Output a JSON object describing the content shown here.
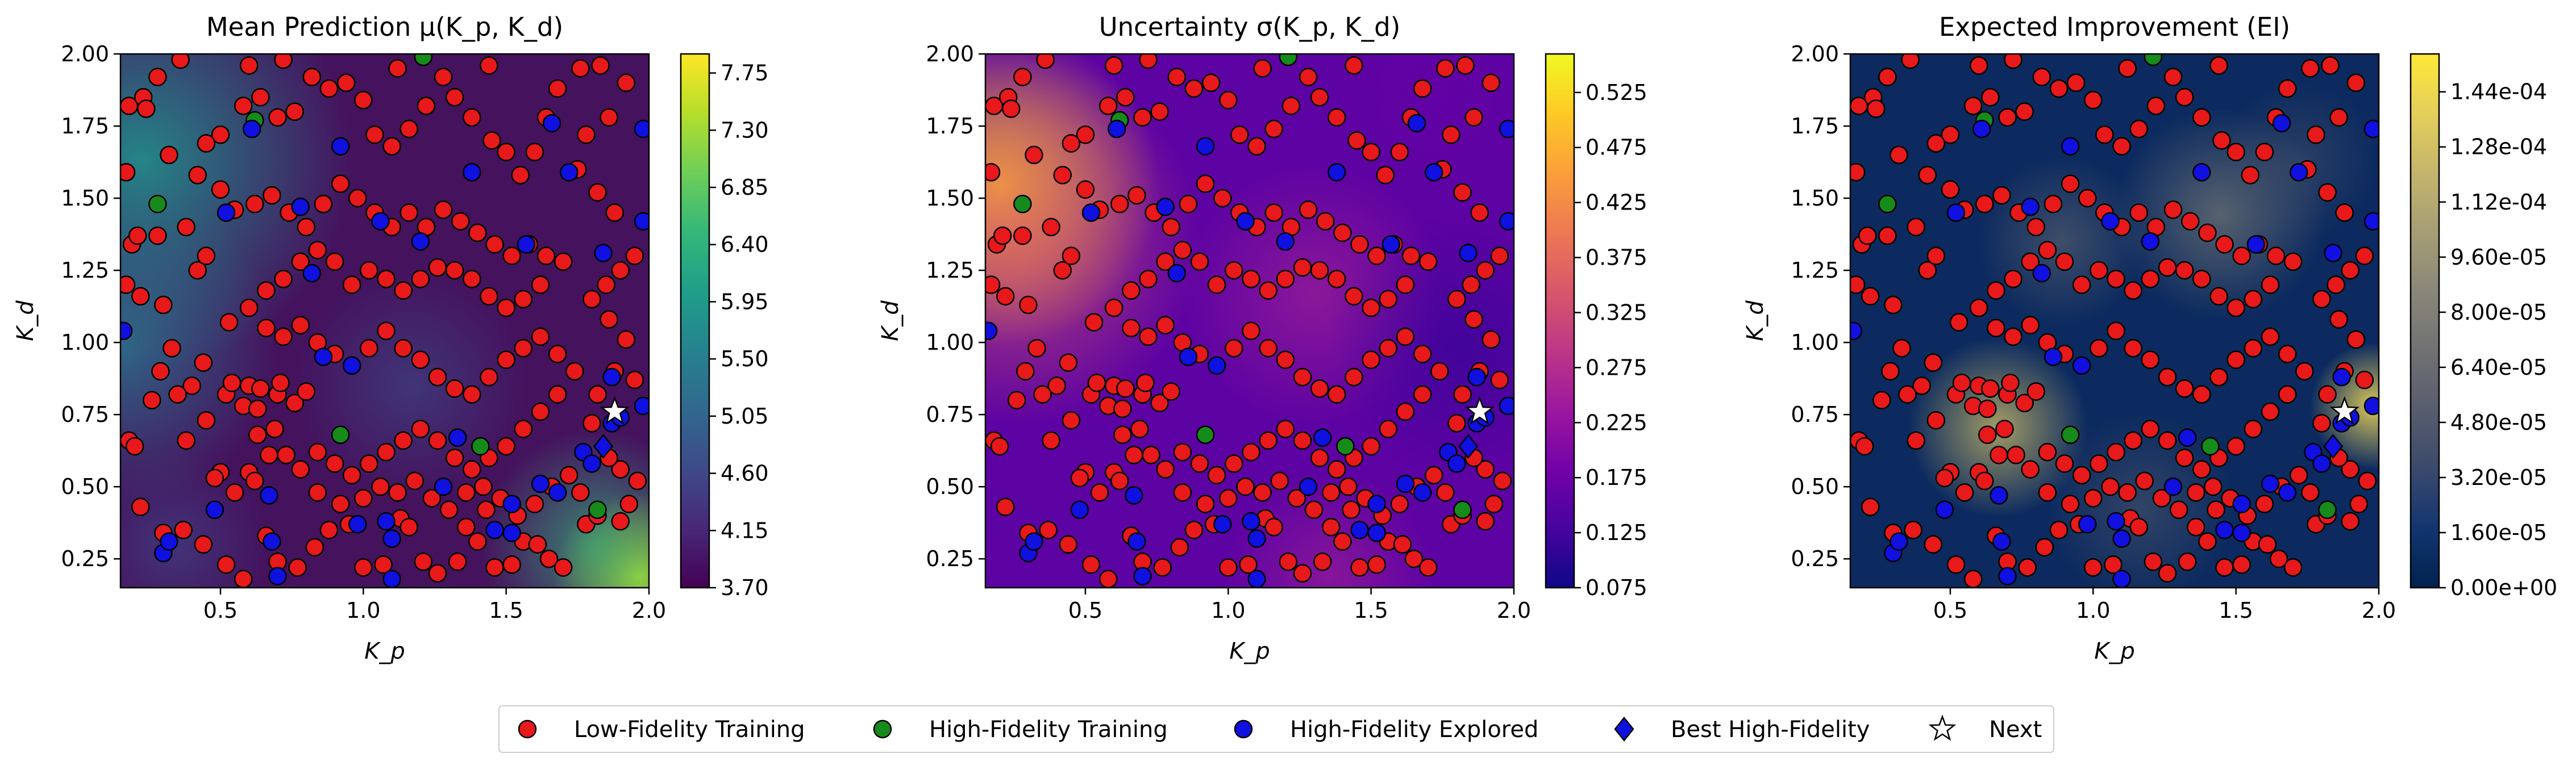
{
  "figure": {
    "legend": [
      {
        "label": "Low-Fidelity Training",
        "marker": "circle",
        "color": "#e8191b"
      },
      {
        "label": "High-Fidelity Training",
        "marker": "circle",
        "color": "#178a1c"
      },
      {
        "label": "High-Fidelity Explored",
        "marker": "circle",
        "color": "#1010e0"
      },
      {
        "label": "Best High-Fidelity",
        "marker": "diamond",
        "color": "#1010e0"
      },
      {
        "label": "Next",
        "marker": "star",
        "color": "#ffffff"
      }
    ]
  },
  "chart_data": [
    {
      "type": "heatmap",
      "title": "Mean Prediction μ(K_p, K_d)",
      "xlabel": "K_p",
      "ylabel": "K_d",
      "xlim": [
        0.15,
        2.0
      ],
      "ylim": [
        0.15,
        2.0
      ],
      "x_ticks": [
        "0.5",
        "1.0",
        "1.5",
        "2.0"
      ],
      "y_ticks": [
        "0.25",
        "0.50",
        "0.75",
        "1.00",
        "1.25",
        "1.50",
        "1.75",
        "2.00"
      ],
      "colormap": "viridis",
      "colorbar_range": [
        3.7,
        7.9
      ],
      "colorbar_ticks": [
        "3.70",
        "4.15",
        "4.60",
        "5.05",
        "5.50",
        "5.95",
        "6.40",
        "6.85",
        "7.30",
        "7.75"
      ],
      "grid": false
    },
    {
      "type": "heatmap",
      "title": "Uncertainty σ(K_p, K_d)",
      "xlabel": "K_p",
      "ylabel": "K_d",
      "xlim": [
        0.15,
        2.0
      ],
      "ylim": [
        0.15,
        2.0
      ],
      "x_ticks": [
        "0.5",
        "1.0",
        "1.5",
        "2.0"
      ],
      "y_ticks": [
        "0.25",
        "0.50",
        "0.75",
        "1.00",
        "1.25",
        "1.50",
        "1.75",
        "2.00"
      ],
      "colormap": "plasma",
      "colorbar_range": [
        0.075,
        0.56
      ],
      "colorbar_ticks": [
        "0.075",
        "0.125",
        "0.175",
        "0.225",
        "0.275",
        "0.325",
        "0.375",
        "0.425",
        "0.475",
        "0.525"
      ],
      "grid": false
    },
    {
      "type": "heatmap",
      "title": "Expected Improvement (EI)",
      "xlabel": "K_p",
      "ylabel": "K_d",
      "xlim": [
        0.15,
        2.0
      ],
      "ylim": [
        0.15,
        2.0
      ],
      "x_ticks": [
        "0.5",
        "1.0",
        "1.5",
        "2.0"
      ],
      "y_ticks": [
        "0.25",
        "0.50",
        "0.75",
        "1.00",
        "1.25",
        "1.50",
        "1.75",
        "2.00"
      ],
      "colormap": "cividis",
      "colorbar_range": [
        0.0,
        0.000155
      ],
      "colorbar_ticks": [
        "0.00e+00",
        "1.60e-05",
        "3.20e-05",
        "4.80e-05",
        "6.40e-05",
        "8.00e-05",
        "9.60e-05",
        "1.12e-04",
        "1.28e-04",
        "1.44e-04"
      ],
      "grid": false
    }
  ],
  "points": {
    "low_fidelity": [
      [
        0.18,
        1.82
      ],
      [
        0.17,
        1.59
      ],
      [
        0.23,
        1.85
      ],
      [
        0.24,
        1.81
      ],
      [
        0.19,
        1.34
      ],
      [
        0.21,
        1.37
      ],
      [
        0.28,
        1.37
      ],
      [
        0.17,
        1.2
      ],
      [
        0.22,
        1.16
      ],
      [
        0.3,
        1.13
      ],
      [
        0.38,
        1.4
      ],
      [
        0.42,
        1.25
      ],
      [
        0.45,
        1.3
      ],
      [
        0.53,
        1.07
      ],
      [
        0.44,
        0.93
      ],
      [
        0.4,
        0.85
      ],
      [
        0.33,
        0.98
      ],
      [
        0.29,
        0.9
      ],
      [
        0.35,
        0.82
      ],
      [
        0.38,
        0.66
      ],
      [
        0.45,
        0.73
      ],
      [
        0.52,
        0.82
      ],
      [
        0.54,
        0.86
      ],
      [
        0.58,
        0.78
      ],
      [
        0.63,
        0.77
      ],
      [
        0.6,
        0.85
      ],
      [
        0.64,
        0.84
      ],
      [
        0.7,
        0.82
      ],
      [
        0.71,
        0.86
      ],
      [
        0.76,
        0.79
      ],
      [
        0.8,
        0.83
      ],
      [
        0.69,
        0.7
      ],
      [
        0.63,
        0.68
      ],
      [
        0.67,
        0.61
      ],
      [
        0.73,
        0.61
      ],
      [
        0.6,
        0.55
      ],
      [
        0.5,
        0.55
      ],
      [
        0.48,
        0.53
      ],
      [
        0.55,
        0.48
      ],
      [
        0.62,
        0.52
      ],
      [
        0.18,
        0.66
      ],
      [
        0.2,
        0.64
      ],
      [
        0.22,
        0.43
      ],
      [
        0.3,
        0.34
      ],
      [
        0.37,
        0.35
      ],
      [
        0.44,
        0.3
      ],
      [
        0.52,
        0.23
      ],
      [
        0.58,
        0.18
      ],
      [
        0.66,
        0.33
      ],
      [
        0.7,
        0.24
      ],
      [
        0.77,
        0.22
      ],
      [
        0.83,
        0.29
      ],
      [
        0.88,
        0.35
      ],
      [
        0.95,
        0.37
      ],
      [
        1.0,
        0.22
      ],
      [
        1.07,
        0.23
      ],
      [
        1.13,
        0.39
      ],
      [
        1.16,
        0.36
      ],
      [
        1.21,
        0.24
      ],
      [
        1.26,
        0.2
      ],
      [
        1.33,
        0.24
      ],
      [
        1.36,
        0.36
      ],
      [
        1.4,
        0.31
      ],
      [
        1.43,
        0.42
      ],
      [
        1.46,
        0.22
      ],
      [
        1.52,
        0.23
      ],
      [
        1.56,
        0.31
      ],
      [
        1.61,
        0.3
      ],
      [
        1.65,
        0.25
      ],
      [
        1.7,
        0.22
      ],
      [
        1.78,
        0.37
      ],
      [
        1.82,
        0.4
      ],
      [
        1.9,
        0.38
      ],
      [
        1.93,
        0.44
      ],
      [
        1.96,
        0.52
      ],
      [
        1.9,
        0.56
      ],
      [
        1.86,
        0.6
      ],
      [
        1.8,
        0.72
      ],
      [
        1.82,
        0.82
      ],
      [
        1.88,
        0.9
      ],
      [
        1.95,
        0.87
      ],
      [
        1.92,
        1.01
      ],
      [
        1.86,
        1.08
      ],
      [
        1.8,
        1.15
      ],
      [
        1.85,
        1.2
      ],
      [
        1.9,
        1.25
      ],
      [
        1.95,
        1.3
      ],
      [
        1.88,
        1.45
      ],
      [
        1.82,
        1.52
      ],
      [
        1.75,
        1.6
      ],
      [
        1.78,
        1.72
      ],
      [
        1.86,
        1.78
      ],
      [
        1.92,
        1.9
      ],
      [
        1.83,
        1.96
      ],
      [
        1.76,
        1.95
      ],
      [
        1.68,
        1.88
      ],
      [
        1.64,
        1.78
      ],
      [
        1.6,
        1.66
      ],
      [
        1.55,
        1.58
      ],
      [
        1.5,
        1.66
      ],
      [
        1.45,
        1.7
      ],
      [
        1.38,
        1.78
      ],
      [
        1.32,
        1.85
      ],
      [
        1.28,
        1.92
      ],
      [
        1.22,
        1.82
      ],
      [
        1.16,
        1.74
      ],
      [
        1.1,
        1.68
      ],
      [
        1.04,
        1.72
      ],
      [
        1.0,
        1.84
      ],
      [
        0.94,
        1.9
      ],
      [
        0.88,
        1.88
      ],
      [
        0.82,
        1.92
      ],
      [
        0.76,
        1.8
      ],
      [
        0.7,
        1.78
      ],
      [
        0.64,
        1.85
      ],
      [
        0.58,
        1.82
      ],
      [
        0.5,
        1.72
      ],
      [
        0.45,
        1.69
      ],
      [
        0.42,
        1.58
      ],
      [
        0.5,
        1.53
      ],
      [
        0.55,
        1.46
      ],
      [
        0.62,
        1.48
      ],
      [
        0.68,
        1.51
      ],
      [
        0.74,
        1.45
      ],
      [
        0.8,
        1.4
      ],
      [
        0.86,
        1.48
      ],
      [
        0.92,
        1.55
      ],
      [
        0.98,
        1.5
      ],
      [
        1.04,
        1.45
      ],
      [
        1.1,
        1.4
      ],
      [
        1.16,
        1.45
      ],
      [
        1.22,
        1.4
      ],
      [
        1.28,
        1.46
      ],
      [
        1.34,
        1.42
      ],
      [
        1.4,
        1.38
      ],
      [
        1.46,
        1.34
      ],
      [
        1.52,
        1.3
      ],
      [
        1.58,
        1.34
      ],
      [
        1.64,
        1.3
      ],
      [
        1.7,
        1.28
      ],
      [
        1.62,
        1.2
      ],
      [
        1.56,
        1.15
      ],
      [
        1.5,
        1.12
      ],
      [
        1.44,
        1.16
      ],
      [
        1.38,
        1.22
      ],
      [
        1.32,
        1.25
      ],
      [
        1.26,
        1.26
      ],
      [
        1.2,
        1.22
      ],
      [
        1.14,
        1.18
      ],
      [
        1.08,
        1.22
      ],
      [
        1.02,
        1.25
      ],
      [
        0.96,
        1.2
      ],
      [
        0.9,
        1.28
      ],
      [
        0.84,
        1.32
      ],
      [
        0.78,
        1.28
      ],
      [
        0.72,
        1.22
      ],
      [
        0.66,
        1.18
      ],
      [
        0.6,
        1.12
      ],
      [
        0.66,
        1.05
      ],
      [
        0.72,
        1.02
      ],
      [
        0.78,
        1.06
      ],
      [
        0.84,
        1.0
      ],
      [
        0.9,
        0.96
      ],
      [
        0.96,
        0.92
      ],
      [
        1.02,
        0.98
      ],
      [
        1.08,
        1.04
      ],
      [
        1.14,
        0.98
      ],
      [
        1.2,
        0.94
      ],
      [
        1.26,
        0.88
      ],
      [
        1.32,
        0.84
      ],
      [
        1.38,
        0.82
      ],
      [
        1.44,
        0.88
      ],
      [
        1.5,
        0.94
      ],
      [
        1.56,
        0.98
      ],
      [
        1.62,
        1.02
      ],
      [
        1.68,
        0.96
      ],
      [
        1.74,
        0.9
      ],
      [
        1.68,
        0.82
      ],
      [
        1.62,
        0.76
      ],
      [
        1.56,
        0.7
      ],
      [
        1.5,
        0.64
      ],
      [
        1.44,
        0.6
      ],
      [
        1.38,
        0.56
      ],
      [
        1.32,
        0.6
      ],
      [
        1.26,
        0.66
      ],
      [
        1.2,
        0.7
      ],
      [
        1.14,
        0.66
      ],
      [
        1.08,
        0.62
      ],
      [
        1.02,
        0.58
      ],
      [
        0.96,
        0.54
      ],
      [
        0.9,
        0.58
      ],
      [
        0.84,
        0.62
      ],
      [
        0.78,
        0.56
      ],
      [
        0.84,
        0.48
      ],
      [
        0.92,
        0.44
      ],
      [
        1.0,
        0.46
      ],
      [
        1.06,
        0.5
      ],
      [
        1.12,
        0.48
      ],
      [
        1.18,
        0.52
      ],
      [
        1.24,
        0.46
      ],
      [
        1.3,
        0.42
      ],
      [
        1.36,
        0.48
      ],
      [
        1.42,
        0.5
      ],
      [
        1.48,
        0.46
      ],
      [
        1.54,
        0.4
      ],
      [
        1.6,
        0.44
      ],
      [
        1.66,
        0.5
      ],
      [
        1.72,
        0.54
      ],
      [
        1.76,
        0.48
      ],
      [
        0.26,
        0.8
      ],
      [
        0.32,
        1.65
      ],
      [
        0.28,
        1.92
      ],
      [
        0.36,
        1.98
      ],
      [
        0.6,
        1.96
      ],
      [
        0.72,
        1.98
      ],
      [
        1.12,
        1.95
      ],
      [
        1.44,
        1.96
      ]
    ],
    "high_fidelity_training": [
      [
        0.62,
        1.77
      ],
      [
        0.92,
        0.68
      ],
      [
        1.21,
        1.99
      ],
      [
        1.41,
        0.64
      ],
      [
        1.82,
        0.42
      ],
      [
        0.28,
        1.48
      ]
    ],
    "high_fidelity_explored": [
      [
        0.16,
        1.04
      ],
      [
        0.48,
        0.42
      ],
      [
        0.3,
        0.27
      ],
      [
        0.32,
        0.31
      ],
      [
        0.52,
        1.45
      ],
      [
        0.61,
        1.74
      ],
      [
        0.67,
        0.47
      ],
      [
        0.68,
        0.31
      ],
      [
        0.7,
        0.19
      ],
      [
        0.78,
        1.47
      ],
      [
        0.82,
        1.24
      ],
      [
        0.86,
        0.95
      ],
      [
        0.92,
        1.68
      ],
      [
        0.96,
        0.92
      ],
      [
        0.98,
        0.37
      ],
      [
        1.06,
        1.42
      ],
      [
        1.08,
        0.38
      ],
      [
        1.1,
        0.32
      ],
      [
        1.2,
        1.35
      ],
      [
        1.28,
        0.5
      ],
      [
        1.33,
        0.67
      ],
      [
        1.38,
        1.59
      ],
      [
        1.46,
        0.35
      ],
      [
        1.52,
        0.44
      ],
      [
        1.57,
        1.34
      ],
      [
        1.62,
        0.51
      ],
      [
        1.66,
        1.76
      ],
      [
        1.72,
        1.59
      ],
      [
        1.77,
        0.62
      ],
      [
        1.8,
        0.58
      ],
      [
        1.84,
        1.31
      ],
      [
        1.87,
        0.72
      ],
      [
        1.87,
        0.88
      ],
      [
        1.9,
        0.74
      ],
      [
        1.98,
        1.42
      ],
      [
        1.98,
        0.78
      ],
      [
        1.98,
        1.74
      ],
      [
        1.68,
        0.48
      ],
      [
        1.52,
        0.34
      ],
      [
        1.1,
        0.18
      ]
    ],
    "best_high_fidelity": [
      [
        1.84,
        0.64
      ]
    ],
    "next": [
      [
        1.88,
        0.76
      ]
    ]
  }
}
